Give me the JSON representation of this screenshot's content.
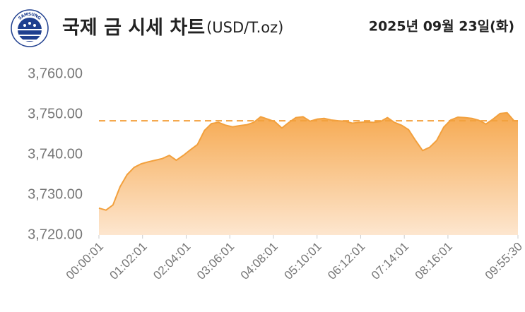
{
  "logo_text": "SAMSUNG",
  "chart_data": {
    "type": "area",
    "title": "국제 금 시세 차트",
    "unit": "(USD/T.oz)",
    "date": "2025년 09월 23일(화)",
    "x": [
      "00:00:01",
      "00:10:01",
      "00:20:01",
      "00:30:01",
      "00:40:01",
      "00:50:01",
      "01:00:01",
      "01:10:01",
      "01:20:01",
      "01:30:01",
      "01:40:01",
      "01:50:01",
      "02:00:01",
      "02:10:01",
      "02:20:01",
      "02:30:01",
      "02:40:01",
      "02:50:01",
      "03:00:01",
      "03:10:01",
      "03:20:01",
      "03:30:01",
      "03:40:01",
      "03:50:01",
      "04:00:01",
      "04:10:01",
      "04:20:01",
      "04:30:01",
      "04:40:01",
      "04:50:01",
      "05:00:01",
      "05:10:01",
      "05:20:01",
      "05:30:01",
      "05:40:01",
      "05:50:01",
      "06:00:01",
      "06:10:01",
      "06:20:01",
      "06:30:01",
      "06:40:01",
      "06:50:01",
      "07:00:01",
      "07:10:01",
      "07:20:01",
      "07:30:01",
      "07:40:01",
      "07:50:01",
      "08:00:01",
      "08:10:01",
      "08:20:01",
      "08:30:01",
      "08:40:01",
      "08:50:01",
      "09:00:01",
      "09:10:01",
      "09:20:01",
      "09:30:01",
      "09:40:01",
      "09:50:01",
      "09:55:30"
    ],
    "values": [
      3726.7,
      3726.2,
      3727.5,
      3732.0,
      3735.0,
      3736.8,
      3737.7,
      3738.2,
      3738.6,
      3739.0,
      3739.8,
      3738.6,
      3739.8,
      3741.2,
      3742.5,
      3746.0,
      3747.7,
      3748.0,
      3747.3,
      3746.9,
      3747.2,
      3747.4,
      3748.0,
      3749.4,
      3748.8,
      3748.2,
      3746.6,
      3748.0,
      3749.2,
      3749.4,
      3748.3,
      3748.8,
      3749.0,
      3748.6,
      3748.4,
      3748.3,
      3747.8,
      3748.0,
      3748.1,
      3748.0,
      3748.2,
      3749.2,
      3748.0,
      3747.3,
      3746.2,
      3743.5,
      3741.0,
      3741.8,
      3743.5,
      3746.8,
      3748.6,
      3749.3,
      3749.2,
      3749.0,
      3748.5,
      3747.6,
      3748.8,
      3750.2,
      3750.4,
      3748.4,
      3748.4
    ],
    "color": "#f2a03d",
    "reference_line": 3748.4,
    "xlim": [
      "00:00:01",
      "09:55:30"
    ],
    "xticks": [
      "00:00:01",
      "01:02:01",
      "02:04:01",
      "03:06:01",
      "04:08:01",
      "05:10:01",
      "06:12:01",
      "07:14:01",
      "08:16:01",
      "09:55:30"
    ],
    "ylim": [
      3720,
      3760
    ],
    "yticks": [
      {
        "value": 3720,
        "label": "3,720.00"
      },
      {
        "value": 3730,
        "label": "3,730.00"
      },
      {
        "value": 3740,
        "label": "3,740.00"
      },
      {
        "value": 3750,
        "label": "3,750.00"
      },
      {
        "value": 3760,
        "label": "3,760.00"
      }
    ],
    "grid": false
  }
}
